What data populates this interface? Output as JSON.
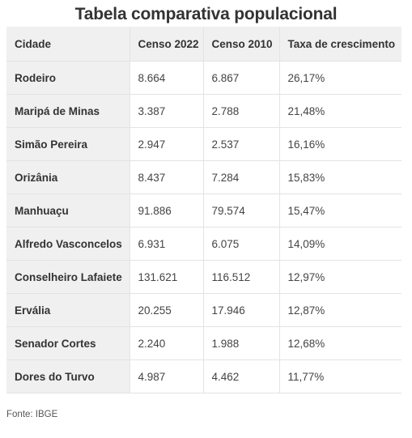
{
  "title": "Tabela comparativa populacional",
  "table": {
    "headers": [
      "Cidade",
      "Censo 2022",
      "Censo 2010",
      "Taxa de crescimento"
    ],
    "rows": [
      [
        "Rodeiro",
        "8.664",
        "6.867",
        "26,17%"
      ],
      [
        "Maripá de Minas",
        "3.387",
        "2.788",
        "21,48%"
      ],
      [
        "Simão Pereira",
        "2.947",
        "2.537",
        "16,16%"
      ],
      [
        "Orizânia",
        "8.437",
        "7.284",
        "15,83%"
      ],
      [
        "Manhuaçu",
        "91.886",
        "79.574",
        "15,47%"
      ],
      [
        "Alfredo Vasconcelos",
        "6.931",
        "6.075",
        "14,09%"
      ],
      [
        "Conselheiro Lafaiete",
        "131.621",
        "116.512",
        "12,97%"
      ],
      [
        "Ervália",
        "20.255",
        "17.946",
        "12,87%"
      ],
      [
        "Senador Cortes",
        "2.240",
        "1.988",
        "12,68%"
      ],
      [
        "Dores do Turvo",
        "4.987",
        "4.462",
        "11,77%"
      ]
    ]
  },
  "source": "Fonte: IBGE"
}
